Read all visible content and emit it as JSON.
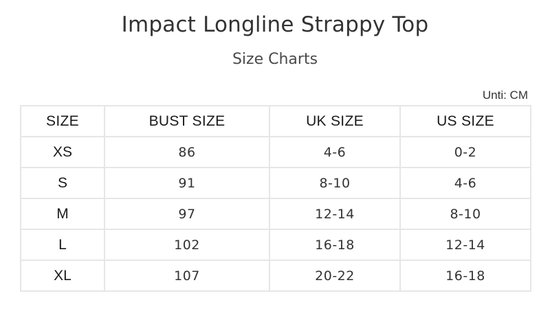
{
  "header": {
    "title": "Impact Longline Strappy Top",
    "subtitle": "Size Charts",
    "unit_note": "Unti: CM"
  },
  "table": {
    "columns": [
      "SIZE",
      "BUST SIZE",
      "UK SIZE",
      "US SIZE"
    ],
    "rows": [
      [
        "XS",
        "86",
        "4-6",
        "0-2"
      ],
      [
        "S",
        "91",
        "8-10",
        "4-6"
      ],
      [
        "M",
        "97",
        "12-14",
        "8-10"
      ],
      [
        "L",
        "102",
        "16-18",
        "12-14"
      ],
      [
        "XL",
        "107",
        "20-22",
        "16-18"
      ]
    ]
  }
}
